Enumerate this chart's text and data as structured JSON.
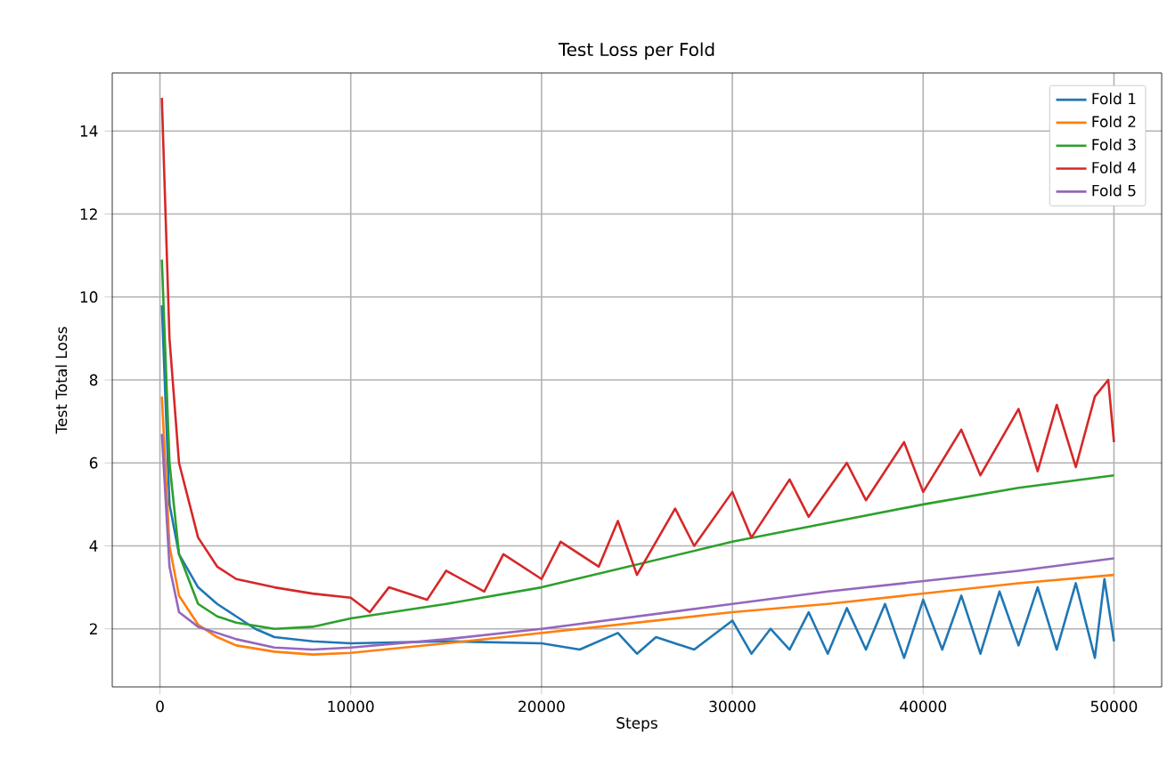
{
  "chart_data": {
    "type": "line",
    "title": "Test Loss per Fold",
    "xlabel": "Steps",
    "ylabel": "Test Total Loss",
    "xlim": [
      -2500,
      52500
    ],
    "ylim": [
      0.6,
      15.4
    ],
    "xticks": [
      0,
      10000,
      20000,
      30000,
      40000,
      50000
    ],
    "yticks": [
      2,
      4,
      6,
      8,
      10,
      12,
      14
    ],
    "grid": true,
    "legend": "top right",
    "line_style": "solid",
    "marker": "none",
    "series": [
      {
        "name": "Fold 1",
        "color": "#1f77b4",
        "x": [
          100,
          500,
          1000,
          2000,
          3000,
          4000,
          5000,
          6000,
          8000,
          10000,
          15000,
          20000,
          22000,
          24000,
          25000,
          26000,
          28000,
          30000,
          31000,
          32000,
          33000,
          34000,
          35000,
          36000,
          37000,
          38000,
          39000,
          40000,
          41000,
          42000,
          43000,
          44000,
          45000,
          46000,
          47000,
          48000,
          49000,
          49500,
          50000
        ],
        "values": [
          9.8,
          5.0,
          3.8,
          3.0,
          2.6,
          2.3,
          2.0,
          1.8,
          1.7,
          1.65,
          1.7,
          1.65,
          1.5,
          1.9,
          1.4,
          1.8,
          1.5,
          2.2,
          1.4,
          2.0,
          1.5,
          2.4,
          1.4,
          2.5,
          1.5,
          2.6,
          1.3,
          2.7,
          1.5,
          2.8,
          1.4,
          2.9,
          1.6,
          3.0,
          1.5,
          3.1,
          1.3,
          3.2,
          1.7
        ]
      },
      {
        "name": "Fold 2",
        "color": "#ff7f0e",
        "x": [
          100,
          500,
          1000,
          2000,
          3000,
          4000,
          6000,
          8000,
          10000,
          15000,
          20000,
          25000,
          30000,
          35000,
          40000,
          45000,
          50000
        ],
        "values": [
          7.6,
          4.0,
          2.8,
          2.1,
          1.8,
          1.6,
          1.45,
          1.38,
          1.42,
          1.65,
          1.9,
          2.15,
          2.4,
          2.6,
          2.85,
          3.1,
          3.3
        ]
      },
      {
        "name": "Fold 3",
        "color": "#2ca02c",
        "x": [
          100,
          500,
          1000,
          2000,
          3000,
          4000,
          6000,
          8000,
          10000,
          15000,
          20000,
          25000,
          30000,
          35000,
          40000,
          45000,
          50000
        ],
        "values": [
          10.9,
          6.0,
          3.8,
          2.6,
          2.3,
          2.15,
          2.0,
          2.05,
          2.25,
          2.6,
          3.0,
          3.55,
          4.1,
          4.55,
          5.0,
          5.4,
          5.7
        ]
      },
      {
        "name": "Fold 4",
        "color": "#d62728",
        "x": [
          100,
          500,
          1000,
          2000,
          3000,
          4000,
          6000,
          8000,
          10000,
          11000,
          12000,
          14000,
          15000,
          17000,
          18000,
          20000,
          21000,
          23000,
          24000,
          25000,
          27000,
          28000,
          30000,
          31000,
          33000,
          34000,
          36000,
          37000,
          39000,
          40000,
          42000,
          43000,
          45000,
          46000,
          47000,
          48000,
          49000,
          49700,
          50000
        ],
        "values": [
          14.8,
          9.0,
          6.0,
          4.2,
          3.5,
          3.2,
          3.0,
          2.85,
          2.75,
          2.4,
          3.0,
          2.7,
          3.4,
          2.9,
          3.8,
          3.2,
          4.1,
          3.5,
          4.6,
          3.3,
          4.9,
          4.0,
          5.3,
          4.2,
          5.6,
          4.7,
          6.0,
          5.1,
          6.5,
          5.3,
          6.8,
          5.7,
          7.3,
          5.8,
          7.4,
          5.9,
          7.6,
          8.0,
          6.5
        ]
      },
      {
        "name": "Fold 5",
        "color": "#9467bd",
        "x": [
          100,
          500,
          1000,
          2000,
          3000,
          4000,
          6000,
          8000,
          10000,
          15000,
          20000,
          25000,
          30000,
          35000,
          40000,
          45000,
          50000
        ],
        "values": [
          6.7,
          3.5,
          2.4,
          2.05,
          1.9,
          1.75,
          1.55,
          1.5,
          1.55,
          1.75,
          2.0,
          2.3,
          2.6,
          2.9,
          3.15,
          3.4,
          3.7
        ]
      }
    ]
  }
}
